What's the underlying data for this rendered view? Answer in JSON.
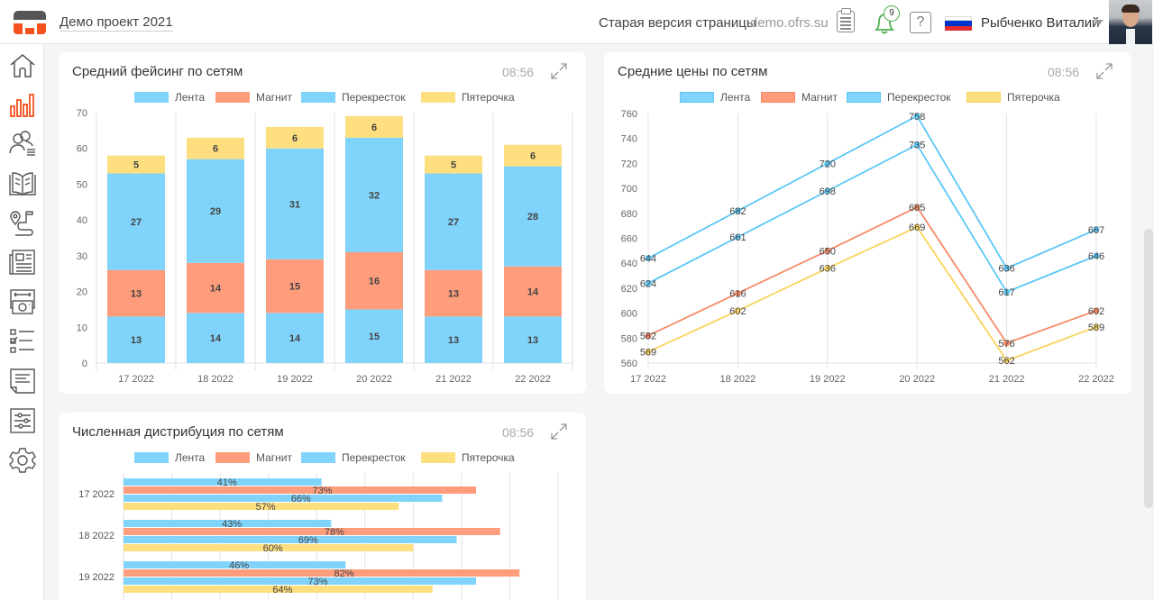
{
  "header": {
    "project_name": "Демо проект 2021",
    "old_version_link": "Старая версия страницы",
    "domain": "demo.ofrs.su",
    "notifications_count": "9",
    "help_label": "?",
    "user_name": "Рыбченко Виталий",
    "flag_colors": [
      "#ffffff",
      "#0033cc",
      "#e52b2b"
    ]
  },
  "sidebar": {
    "active_color": "#f4511e",
    "items": [
      {
        "icon": "home-icon",
        "active": false
      },
      {
        "icon": "bar-chart-icon",
        "active": true
      },
      {
        "icon": "users-list-icon",
        "active": false
      },
      {
        "icon": "book-icon",
        "active": false
      },
      {
        "icon": "route-icon",
        "active": false
      },
      {
        "icon": "newspaper-icon",
        "active": false
      },
      {
        "icon": "photo-camera-icon",
        "active": false
      },
      {
        "icon": "checklist-icon",
        "active": false
      },
      {
        "icon": "document-icon",
        "active": false
      },
      {
        "icon": "sliders-icon",
        "active": false
      },
      {
        "icon": "gear-icon",
        "active": false
      }
    ]
  },
  "colors": {
    "lenta": "#80d4fb",
    "magnit": "#fe9c7c",
    "perekrestok": "#80d4fb",
    "pyaterochka": "#fedf80"
  },
  "cards": {
    "facing": {
      "title": "Средний фейсинг по сетям",
      "time": "08:56"
    },
    "prices": {
      "title": "Средние цены по сетям",
      "time": "08:56"
    },
    "distribution": {
      "title": "Численная дистрибуция по сетям",
      "time": "08:56"
    }
  },
  "legend": [
    "Лента",
    "Магнит",
    "Перекресток",
    "Пятерочка"
  ],
  "chart_data": [
    {
      "type": "bar",
      "stacked": true,
      "title": "Средний фейсинг по сетям",
      "categories": [
        "17 2022",
        "18 2022",
        "19 2022",
        "20 2022",
        "21 2022",
        "22 2022"
      ],
      "series": [
        {
          "name": "Лента",
          "values": [
            13,
            14,
            14,
            15,
            13,
            13
          ]
        },
        {
          "name": "Магнит",
          "values": [
            13,
            14,
            15,
            16,
            13,
            14
          ]
        },
        {
          "name": "Перекресток",
          "values": [
            27,
            29,
            31,
            32,
            27,
            28
          ]
        },
        {
          "name": "Пятерочка",
          "values": [
            5,
            6,
            6,
            6,
            5,
            6
          ]
        }
      ],
      "ylim": [
        0,
        70
      ],
      "yticks": [
        0,
        10,
        20,
        30,
        40,
        50,
        60,
        70
      ],
      "legend_position": "top",
      "grid": true
    },
    {
      "type": "line",
      "title": "Средние цены по сетям",
      "categories": [
        "17 2022",
        "18 2022",
        "19 2022",
        "20 2022",
        "21 2022",
        "22 2022"
      ],
      "series": [
        {
          "name": "Лента",
          "values": [
            644,
            682,
            720,
            758,
            636,
            667
          ]
        },
        {
          "name": "Магнит",
          "values": [
            582,
            616,
            650,
            685,
            576,
            602
          ]
        },
        {
          "name": "Перекресток",
          "values": [
            624,
            661,
            698,
            735,
            617,
            646
          ]
        },
        {
          "name": "Пятерочка",
          "values": [
            569,
            602,
            636,
            669,
            562,
            589
          ]
        }
      ],
      "ylim": [
        560,
        760
      ],
      "yticks": [
        560,
        580,
        600,
        620,
        640,
        660,
        680,
        700,
        720,
        740,
        760
      ],
      "legend_position": "top",
      "grid": true
    },
    {
      "type": "bar",
      "orientation": "horizontal",
      "title": "Численная дистрибуция по сетям",
      "categories": [
        "17 2022",
        "18 2022",
        "19 2022"
      ],
      "series": [
        {
          "name": "Лента",
          "values": [
            41,
            43,
            46
          ]
        },
        {
          "name": "Магнит",
          "values": [
            73,
            78,
            82
          ]
        },
        {
          "name": "Перекресток",
          "values": [
            66,
            69,
            73
          ]
        },
        {
          "name": "Пятерочка",
          "values": [
            57,
            60,
            64
          ]
        }
      ],
      "value_suffix": "%",
      "xlim": [
        0,
        90
      ],
      "legend_position": "top",
      "grid": true
    }
  ]
}
